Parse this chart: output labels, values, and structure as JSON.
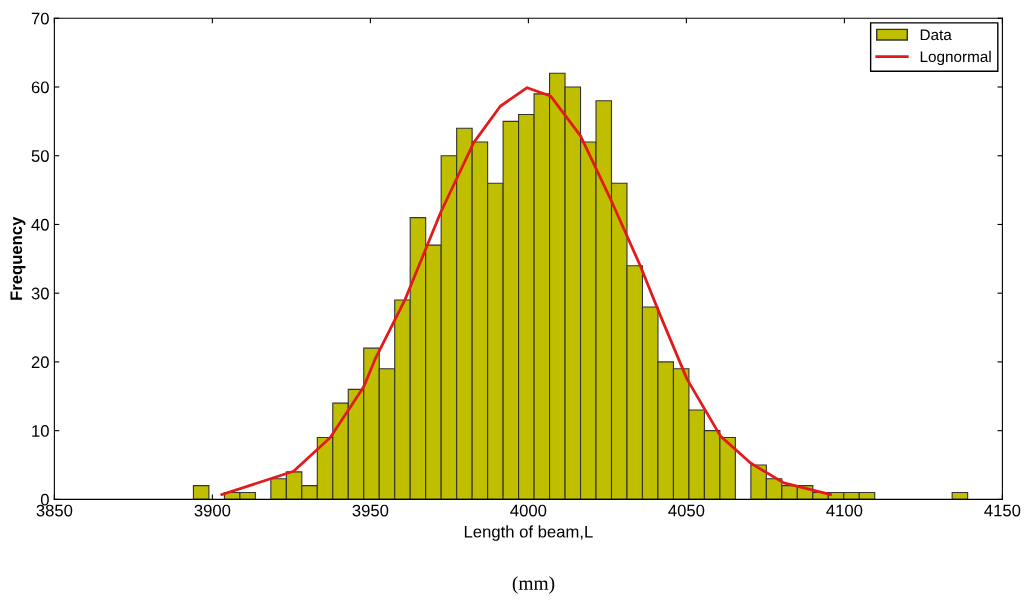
{
  "chart_data": {
    "type": "histogram",
    "xlabel": "Length of beam,L",
    "ylabel": "Frequency",
    "annotations": [
      "(mm)"
    ],
    "bins": [
      3894.0,
      3898.9,
      3903.8,
      3908.7,
      3913.6,
      3918.5,
      3923.4,
      3928.3,
      3933.2,
      3938.1,
      3943.0,
      3947.9,
      3952.8,
      3957.7,
      3962.6,
      3967.5,
      3972.4,
      3977.3,
      3982.2,
      3987.1,
      3992.0,
      3996.9,
      4001.8,
      4006.7,
      4011.6,
      4016.5,
      4021.4,
      4026.3,
      4031.2,
      4036.1,
      4041.0,
      4045.9,
      4050.8,
      4055.7,
      4060.6,
      4065.5,
      4070.4,
      4075.3,
      4080.2,
      4085.1,
      4090.0,
      4094.9,
      4099.8,
      4104.7,
      4109.6,
      4114.5,
      4119.4,
      4124.3,
      4129.2,
      4134.1,
      4139.0
    ],
    "series": [
      {
        "name": "Data",
        "color": "#bfbf00",
        "values": [
          2,
          0,
          1,
          1,
          0,
          3,
          4,
          2,
          9,
          14,
          16,
          22,
          19,
          29,
          41,
          37,
          50,
          54,
          52,
          46,
          55,
          56,
          59,
          62,
          60,
          52,
          58,
          46,
          34,
          28,
          20,
          19,
          13,
          10,
          9,
          0,
          5,
          3,
          2,
          2,
          1,
          1,
          1,
          1,
          0,
          0,
          0,
          0,
          0,
          1
        ]
      },
      {
        "name": "Lognormal",
        "type": "line",
        "color": "#e31a1c",
        "x": [
          3903,
          3925.7,
          3937.3,
          3947.8,
          3951.5,
          3961,
          3972.2,
          3982.7,
          3991.1,
          3999.6,
          4007,
          4016.5,
          4026,
          4035.4,
          4041.8,
          4050.2,
          4060.8,
          4070.3,
          4080.8,
          4095.6
        ],
        "values": [
          0.7,
          4.1,
          9.0,
          16.3,
          20.4,
          29.1,
          41.7,
          51.9,
          57.2,
          59.9,
          58.7,
          52.9,
          43.7,
          34,
          26.7,
          17.5,
          9.2,
          5.3,
          2.4,
          0.7
        ]
      }
    ],
    "xlim": [
      3850,
      4150
    ],
    "xticks": [
      3850,
      3900,
      3950,
      4000,
      4050,
      4100,
      4150
    ],
    "ylim": [
      0,
      70
    ],
    "yticks": [
      0,
      10,
      20,
      30,
      40,
      50,
      60,
      70
    ],
    "legend": "top right",
    "grid": false
  }
}
